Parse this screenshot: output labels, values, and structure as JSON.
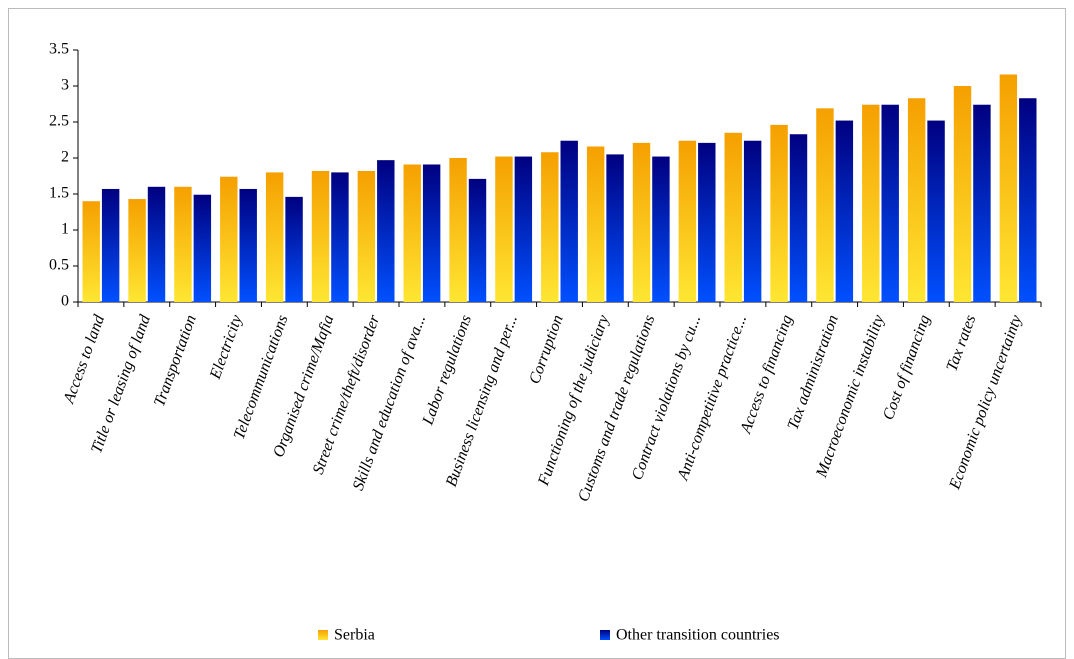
{
  "chart_data": {
    "type": "bar",
    "categories": [
      "Access to land",
      "Title or leasing of land",
      "Transportation",
      "Electricity",
      "Telecommunications",
      "Organised crime/Mafia",
      "Street crime/theft/disorder",
      "Skills and education of ava...",
      "Labor regulations",
      "Business licensing and per...",
      "Corruption",
      "Functioning of the judiciary",
      "Customs and trade regulations",
      "Contract violations by cu...",
      "Anti-competitive practice...",
      "Access to financing",
      "Tax administration",
      "Macroeconomic instability",
      "Cost of financing",
      "Tax rates",
      "Economic policy uncertainty"
    ],
    "series": [
      {
        "name": "Serbia",
        "color": "#f5a000",
        "values": [
          1.4,
          1.43,
          1.6,
          1.74,
          1.8,
          1.82,
          1.82,
          1.91,
          2.0,
          2.02,
          2.08,
          2.16,
          2.21,
          2.24,
          2.35,
          2.46,
          2.69,
          2.74,
          2.83,
          3.0,
          3.16
        ]
      },
      {
        "name": "Other transition countries",
        "color": "#000080",
        "values": [
          1.57,
          1.6,
          1.49,
          1.57,
          1.46,
          1.8,
          1.97,
          1.91,
          1.71,
          2.02,
          2.24,
          2.05,
          2.02,
          2.21,
          2.24,
          2.33,
          2.52,
          2.74,
          2.52,
          2.74,
          2.83
        ]
      }
    ],
    "ylim": [
      0,
      3.5
    ],
    "yticks": [
      0,
      0.5,
      1,
      1.5,
      2,
      2.5,
      3,
      3.5
    ],
    "legend": "bottom"
  }
}
